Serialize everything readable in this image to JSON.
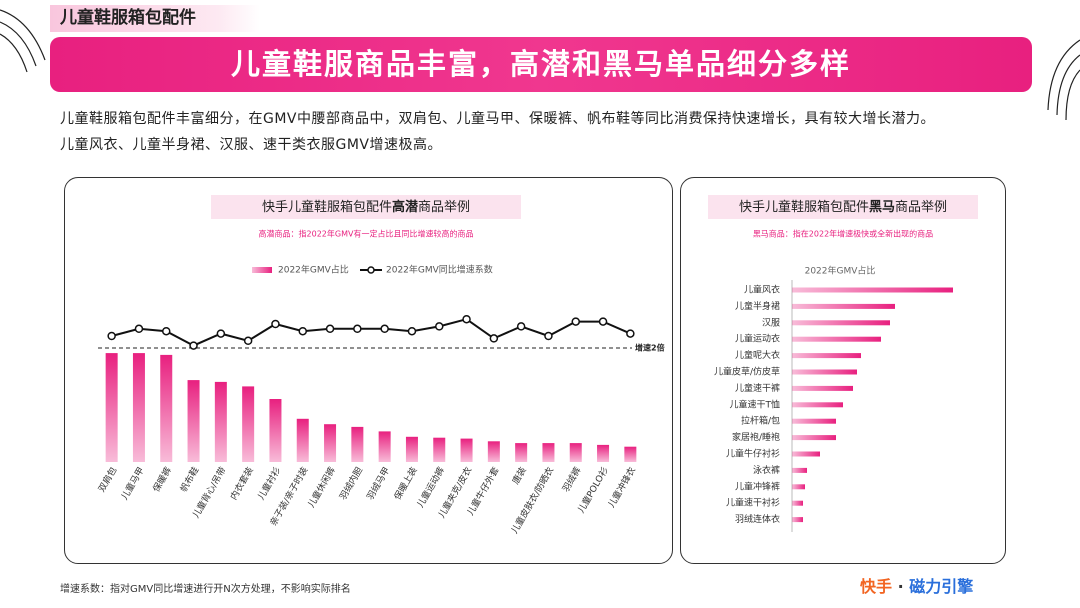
{
  "header": {
    "tag": "儿童鞋服箱包配件",
    "headline": "儿童鞋服商品丰富，高潜和黑马单品细分多样",
    "paragraph": [
      "儿童鞋服箱包配件丰富细分，在GMV中腰部商品中，双肩包、儿童马甲、保暖裤、帆布鞋等同比消费保持快速增长，具有较大增长潜力。",
      "儿童风衣、儿童半身裙、汉服、速干类衣服GMV增速极高。"
    ]
  },
  "chart_data": [
    {
      "type": "combo",
      "title": [
        "快手儿童鞋服箱包配件",
        "高潜",
        "商品举例"
      ],
      "subtitle": "高潜商品：指2022年GMV有一定占比且同比增速较高的商品",
      "categories": [
        "双肩包",
        "儿童马甲",
        "保暖裤",
        "帆布鞋",
        "儿童背心/吊带",
        "内衣套装",
        "儿童衬衫",
        "亲子装/亲子时装",
        "儿童休闲裤",
        "羽绒内胆",
        "羽绒马甲",
        "保暖上装",
        "儿童运动裤",
        "儿童夹克/皮衣",
        "儿童牛仔外套",
        "唐装",
        "儿童皮肤衣/防晒衣",
        "羽绒裤",
        "儿童POLO衫",
        "儿童冲锋衣"
      ],
      "series": [
        {
          "name": "2022年GMV占比",
          "type": "bar",
          "color": "#e8207f",
          "values": [
            12.1,
            12.1,
            11.9,
            9.1,
            8.9,
            8.4,
            7.0,
            4.8,
            4.2,
            3.9,
            3.4,
            2.8,
            2.7,
            2.6,
            2.3,
            2.1,
            2.1,
            2.1,
            1.9,
            1.7
          ]
        },
        {
          "name": "2022年GMV同比增速系数",
          "type": "line",
          "axis": "y2",
          "color": "#111111",
          "values": [
            2.5,
            2.8,
            2.7,
            2.1,
            2.6,
            2.3,
            3.0,
            2.7,
            2.8,
            2.8,
            2.8,
            2.7,
            2.9,
            3.2,
            2.4,
            2.9,
            2.5,
            3.1,
            3.1,
            2.6
          ]
        }
      ],
      "ylim": [
        0,
        14
      ],
      "y2lim": [
        0,
        4
      ],
      "reference_line": {
        "value": 2,
        "label": "增速2倍"
      }
    },
    {
      "type": "bar",
      "horizontal": true,
      "title": [
        "快手儿童鞋服箱包配件",
        "黑马",
        "商品举例"
      ],
      "subtitle": "黑马商品：指在2022年增速极快或全新出现的商品",
      "categories": [
        "儿童风衣",
        "儿童半身裙",
        "汉服",
        "儿童运动衣",
        "儿童呢大衣",
        "儿童皮草/仿皮草",
        "儿童速干裤",
        "儿童速干T恤",
        "拉杆箱/包",
        "家居袍/睡袍",
        "儿童牛仔衬衫",
        "泳衣裤",
        "儿童冲锋裤",
        "儿童速干衬衫",
        "羽绒连体衣"
      ],
      "series": [
        {
          "name": "2022年GMV占比",
          "color": "#e8207f",
          "values": [
            16.1,
            10.3,
            9.8,
            8.9,
            6.9,
            6.5,
            6.1,
            5.1,
            4.4,
            4.4,
            2.8,
            1.5,
            1.3,
            1.1,
            1.1
          ]
        }
      ],
      "xlim": [
        0,
        18
      ]
    }
  ],
  "footer": {
    "note": "增速系数：指对GMV同比增速进行开N次方处理，不影响实际排名",
    "logo": [
      "快手",
      "·",
      "磁力引擎"
    ]
  }
}
